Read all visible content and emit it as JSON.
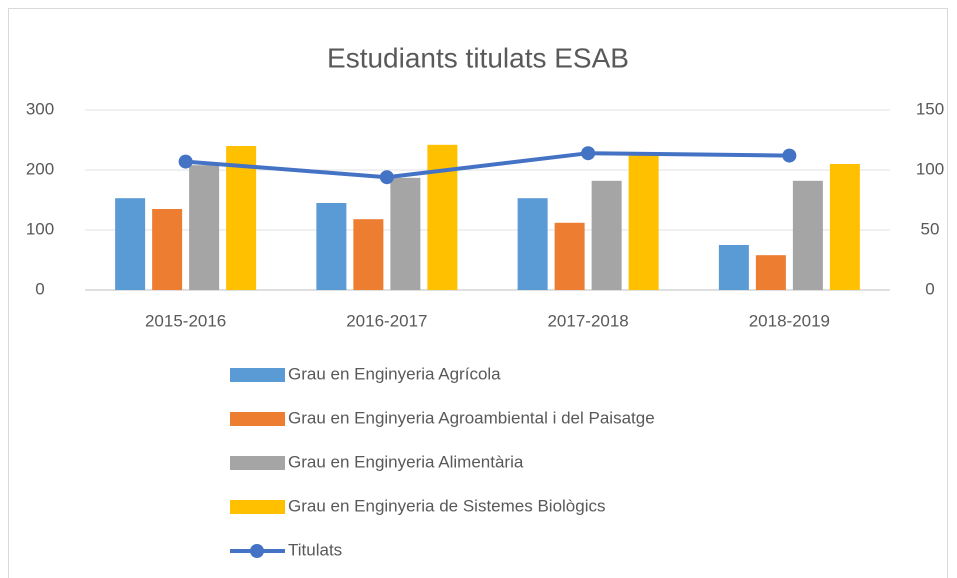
{
  "chart_data": {
    "type": "bar",
    "title": "Estudiants titulats ESAB",
    "categories": [
      "2015-2016",
      "2016-2017",
      "2017-2018",
      "2018-2019"
    ],
    "series": [
      {
        "name": "Grau en Enginyeria Agrícola",
        "color": "#5b9bd5",
        "values": [
          153,
          145,
          153,
          75
        ]
      },
      {
        "name": "Grau en Enginyeria Agroambiental i del Paisatge",
        "color": "#ed7d31",
        "values": [
          135,
          118,
          112,
          58
        ]
      },
      {
        "name": "Grau en Enginyeria Alimentària",
        "color": "#a5a5a5",
        "values": [
          208,
          187,
          182,
          182
        ]
      },
      {
        "name": "Grau en Enginyeria de Sistemes Biològics",
        "color": "#ffc000",
        "values": [
          240,
          242,
          228,
          210
        ]
      },
      {
        "name": "Titulats",
        "color": "#4472c4",
        "type": "line",
        "axis": "y2",
        "values": [
          107,
          94,
          114,
          112
        ]
      }
    ],
    "ylim": [
      0,
      300
    ],
    "yticks": [
      0,
      100,
      200,
      300
    ],
    "y2lim": [
      0,
      150
    ],
    "y2ticks": [
      0,
      50,
      100,
      150
    ],
    "grid": true,
    "legend": "bottom"
  }
}
